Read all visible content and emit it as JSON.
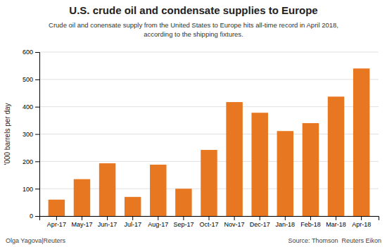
{
  "chart_data": {
    "type": "bar",
    "title": "U.S. crude oil and condensate supplies to Europe",
    "subtitle": "Crude oil and conensate supply from the United States to Europe hits all-time record in April 2018,\naccording to the shipping fixtures.",
    "ylabel": "'000 barrels per day",
    "categories": [
      "Apr-17",
      "May-17",
      "Jun-17",
      "Jul-17",
      "Aug-17",
      "Sep-17",
      "Oct-17",
      "Nov-17",
      "Dec-17",
      "Jan-18",
      "Feb-18",
      "Mar-18",
      "Apr-18"
    ],
    "values": [
      60,
      135,
      193,
      70,
      188,
      100,
      242,
      417,
      378,
      311,
      340,
      437,
      540
    ],
    "color": "#E87722",
    "ylim": [
      0,
      600
    ],
    "yticks": [
      0,
      100,
      200,
      300,
      400,
      500,
      600
    ],
    "grid": true,
    "annotations": [
      "Olga Yagova|Reuters",
      "Source: Thomson  Reuters Eikon"
    ]
  }
}
